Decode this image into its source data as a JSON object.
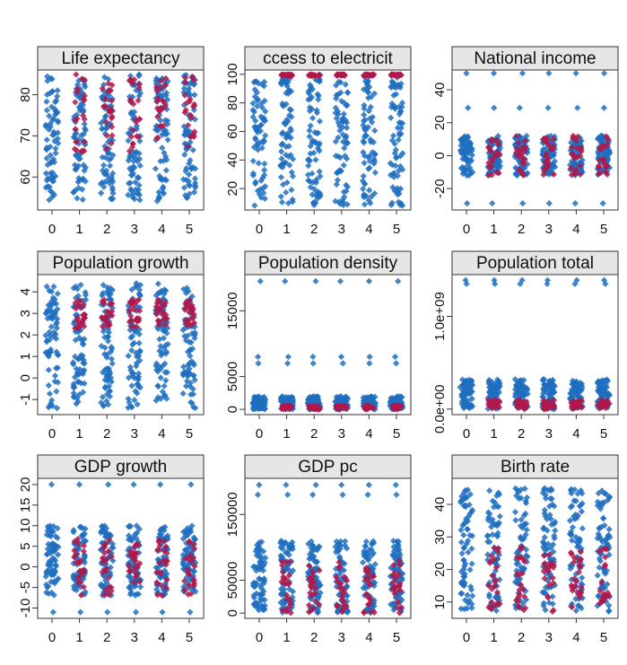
{
  "colors": {
    "primary": "#1f6fbf",
    "highlight": "#b0174a",
    "strip_fill": "#e6e6e6"
  },
  "chart_data": [
    {
      "type": "scatter",
      "title": "Life expectancy",
      "x_ticks": [
        "0",
        "1",
        "2",
        "3",
        "4",
        "5"
      ],
      "y_ticks": [
        {
          "v": 60,
          "label": "60"
        },
        {
          "v": 70,
          "label": "70"
        },
        {
          "v": 80,
          "label": "80"
        }
      ],
      "ylim": [
        52,
        86
      ],
      "y_range": [
        54,
        85
      ],
      "y_outliers": [],
      "highlight_range": [
        66,
        85
      ],
      "highlight_groups": [
        1,
        2,
        3,
        4,
        5
      ],
      "grid": false
    },
    {
      "type": "scatter",
      "title": "ccess to electricit",
      "x_ticks": [
        "0",
        "1",
        "2",
        "3",
        "4",
        "5"
      ],
      "y_ticks": [
        {
          "v": 20,
          "label": "20"
        },
        {
          "v": 40,
          "label": "40"
        },
        {
          "v": 60,
          "label": "60"
        },
        {
          "v": 80,
          "label": "80"
        },
        {
          "v": 100,
          "label": "100"
        }
      ],
      "ylim": [
        5,
        103
      ],
      "y_range": [
        8,
        100
      ],
      "y_outliers": [],
      "highlight_range": [
        99,
        100
      ],
      "highlight_groups": [
        1,
        2,
        3,
        4,
        5
      ],
      "grid": false
    },
    {
      "type": "scatter",
      "title": "National income",
      "x_ticks": [
        "0",
        "1",
        "2",
        "3",
        "4",
        "5"
      ],
      "y_ticks": [
        {
          "v": -20,
          "label": "-20"
        },
        {
          "v": 0,
          "label": "0"
        },
        {
          "v": 20,
          "label": "20"
        },
        {
          "v": 40,
          "label": "40"
        }
      ],
      "ylim": [
        -33,
        52
      ],
      "y_range": [
        -12,
        12
      ],
      "y_outliers": [
        -29,
        29,
        50
      ],
      "highlight_range": [
        -12,
        12
      ],
      "highlight_groups": [
        1,
        2,
        3,
        4,
        5
      ],
      "grid": false
    },
    {
      "type": "scatter",
      "title": "Population growth",
      "x_ticks": [
        "0",
        "1",
        "2",
        "3",
        "4",
        "5"
      ],
      "y_ticks": [
        {
          "v": -1,
          "label": "-1"
        },
        {
          "v": 0,
          "label": "0"
        },
        {
          "v": 1,
          "label": "1"
        },
        {
          "v": 2,
          "label": "2"
        },
        {
          "v": 3,
          "label": "3"
        },
        {
          "v": 4,
          "label": "4"
        }
      ],
      "ylim": [
        -1.7,
        4.8
      ],
      "y_range": [
        -1.4,
        4.4
      ],
      "y_outliers": [],
      "highlight_range": [
        2.3,
        3.7
      ],
      "highlight_groups": [
        1,
        2,
        3,
        4,
        5
      ],
      "grid": false
    },
    {
      "type": "scatter",
      "title": "Population density",
      "x_ticks": [
        "0",
        "1",
        "2",
        "3",
        "4",
        "5"
      ],
      "y_ticks": [
        {
          "v": 0,
          "label": "0"
        },
        {
          "v": 5000,
          "label": "5000"
        },
        {
          "v": 15000,
          "label": "15000"
        }
      ],
      "ylim": [
        -800,
        20500
      ],
      "y_range": [
        0,
        2000
      ],
      "y_outliers": [
        7000,
        8000,
        19500
      ],
      "highlight_range": [
        0,
        600
      ],
      "highlight_groups": [
        1,
        2,
        3,
        4,
        5
      ],
      "grid": false
    },
    {
      "type": "scatter",
      "title": "Population total",
      "x_ticks": [
        "0",
        "1",
        "2",
        "3",
        "4",
        "5"
      ],
      "y_ticks": [
        {
          "v": 0,
          "label": "0.0e+00"
        },
        {
          "v": 1000000000,
          "label": "1.0e+09"
        }
      ],
      "ylim": [
        -60000000,
        1450000000
      ],
      "y_range": [
        0,
        320000000
      ],
      "y_outliers": [
        1350000000,
        1390000000
      ],
      "highlight_range": [
        0,
        100000000
      ],
      "highlight_groups": [
        1,
        2,
        3,
        4,
        5
      ],
      "grid": false
    },
    {
      "type": "scatter",
      "title": "GDP_growth",
      "x_ticks": [
        "0",
        "1",
        "2",
        "3",
        "4",
        "5"
      ],
      "y_ticks": [
        {
          "v": -10,
          "label": "-10"
        },
        {
          "v": -5,
          "label": "-5"
        },
        {
          "v": 0,
          "label": "0"
        },
        {
          "v": 5,
          "label": "5"
        },
        {
          "v": 10,
          "label": "10"
        },
        {
          "v": 15,
          "label": "15"
        },
        {
          "v": 20,
          "label": "20"
        }
      ],
      "ylim": [
        -12.5,
        21.5
      ],
      "y_range": [
        -7,
        10
      ],
      "y_outliers": [
        -11,
        20
      ],
      "highlight_range": [
        -7,
        7
      ],
      "highlight_groups": [
        1,
        2,
        3,
        4,
        5
      ],
      "grid": false
    },
    {
      "type": "scatter",
      "title": "GDP_pc",
      "x_ticks": [
        "0",
        "1",
        "2",
        "3",
        "4",
        "5"
      ],
      "y_ticks": [
        {
          "v": 0,
          "label": "0"
        },
        {
          "v": 50000,
          "label": "50000"
        },
        {
          "v": 150000,
          "label": "150000"
        }
      ],
      "ylim": [
        -8000,
        205000
      ],
      "y_range": [
        0,
        110000
      ],
      "y_outliers": [
        180000,
        195000
      ],
      "highlight_range": [
        0,
        80000
      ],
      "highlight_groups": [
        1,
        2,
        3,
        4,
        5
      ],
      "grid": false
    },
    {
      "type": "scatter",
      "title": "Birth rate",
      "x_ticks": [
        "0",
        "1",
        "2",
        "3",
        "4",
        "5"
      ],
      "y_ticks": [
        {
          "v": 10,
          "label": "10"
        },
        {
          "v": 20,
          "label": "20"
        },
        {
          "v": 30,
          "label": "30"
        },
        {
          "v": 40,
          "label": "40"
        }
      ],
      "ylim": [
        5,
        48
      ],
      "y_range": [
        7,
        45
      ],
      "y_outliers": [],
      "highlight_range": [
        7,
        27
      ],
      "highlight_groups": [
        1,
        2,
        3,
        4,
        5
      ],
      "grid": false
    }
  ]
}
